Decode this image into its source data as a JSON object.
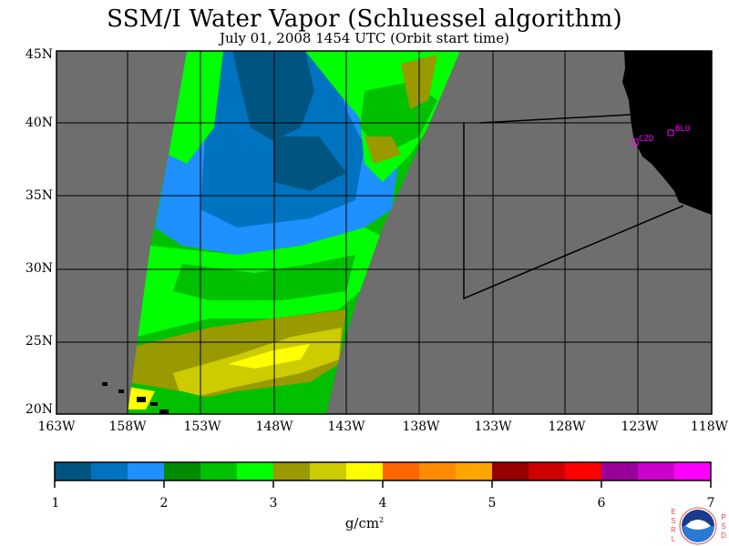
{
  "title": "SSM/I Water Vapor (Schluessel algorithm)",
  "subtitle": "July 01, 2008  1454 UTC  (Orbit start time)",
  "lat_labels": [
    "45N",
    "40N",
    "35N",
    "30N",
    "25N",
    "20N"
  ],
  "lon_labels": [
    "163W",
    "158W",
    "153W",
    "148W",
    "143W",
    "138W",
    "133W",
    "128W",
    "123W",
    "118W"
  ],
  "sites": [
    {
      "label": "CZD"
    },
    {
      "label": "BLU"
    }
  ],
  "colorbar": {
    "ticks": [
      "1",
      "2",
      "3",
      "4",
      "5",
      "6",
      "7"
    ],
    "units": "g/cm",
    "units_sup": "2",
    "colors": [
      "#005580",
      "#0073c0",
      "#1e90ff",
      "#008b00",
      "#00c000",
      "#00ff00",
      "#999900",
      "#cccc00",
      "#ffff00",
      "#ff6600",
      "#ff8c00",
      "#ffa500",
      "#990000",
      "#cc0000",
      "#ff0000",
      "#990099",
      "#cc00cc",
      "#ff00ff"
    ]
  },
  "colors": {
    "land": "#000000",
    "no_data": "#6e6e6e",
    "site_marker": "#ff00ff"
  },
  "logo": {
    "left_text": "ESRL",
    "right_text": "PSD",
    "center_text": "NOAA"
  }
}
